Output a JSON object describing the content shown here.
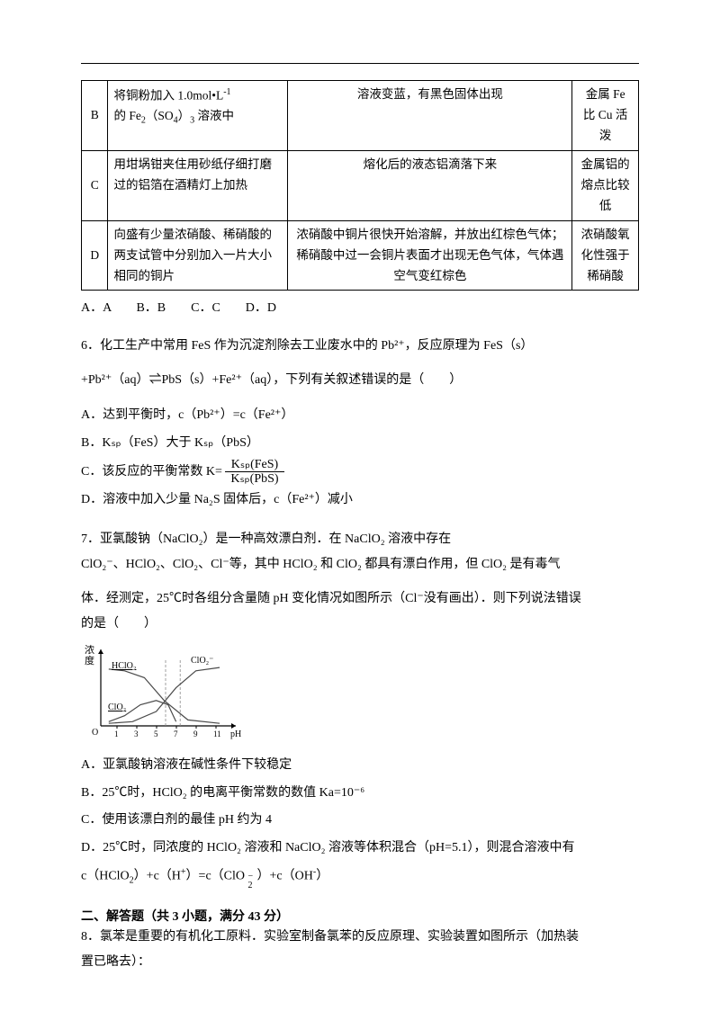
{
  "rule_present": true,
  "table": {
    "rows": [
      {
        "label": "B",
        "proc": "将铜粉加入 1.0mol•L⁻¹\n的 Fe₂（SO₄）₃ 溶液中",
        "obs": "溶液变蓝，有黑色固体出现",
        "concl": "金属 Fe 比 Cu 活泼"
      },
      {
        "label": "C",
        "proc": "用坩埚钳夹住用砂纸仔细打磨过的铝箔在酒精灯上加热",
        "obs": "熔化后的液态铝滴落下来",
        "concl": "金属铝的熔点比较低"
      },
      {
        "label": "D",
        "proc": "向盛有少量浓硝酸、稀硝酸的两支试管中分别加入一片大小相同的铜片",
        "obs": "浓硝酸中铜片很快开始溶解，并放出红棕色气体；稀硝酸中过一会铜片表面才出现无色气体，气体遇空气变红棕色",
        "concl": "浓硝酸氧化性强于稀硝酸"
      }
    ]
  },
  "q5_opts": "A．A　　B．B　　C．C　　D．D",
  "q6": {
    "stem1": "6．化工生产中常用 FeS 作为沉淀剂除去工业废水中的 Pb²⁺，反应原理为 FeS（s）",
    "stem2": "+Pb²⁺（aq）⇌PbS（s）+Fe²⁺（aq），下列有关叙述错误的是（　　）",
    "A": "A．达到平衡时，c（Pb²⁺）=c（Fe²⁺）",
    "B": "B．Kₛₚ（FeS）大于 Kₛₚ（PbS）",
    "C_prefix": "C．该反应的平衡常数 K=",
    "C_num": "Kₛₚ(FeS)",
    "C_den": "Kₛₚ(PbS)",
    "D": "D．溶液中加入少量 Na₂S 固体后，c（Fe²⁺）减小"
  },
  "q7": {
    "l1": "7．亚氯酸钠（NaClO₂）是一种高效漂白剂．在 NaClO₂ 溶液中存在",
    "l2": "ClO₂⁻、HClO₂、ClO₂、Cl⁻等，其中 HClO₂ 和 ClO₂ 都具有漂白作用，但 ClO₂ 是有毒气",
    "l3": "体．经测定，25℃时各组分含量随 pH 变化情况如图所示（Cl⁻没有画出）．则下列说法错误",
    "l4": "的是（　　）",
    "A": "A．亚氯酸钠溶液在碱性条件下较稳定",
    "B": "B．25℃时，HClO₂ 的电离平衡常数的数值 Ka=10⁻⁶",
    "C": "C．使用该漂白剂的最佳 pH 约为 4",
    "D1": "D．25℃时，同浓度的 HClO₂ 溶液和 NaClO₂ 溶液等体积混合（pH=5.1），则混合溶液中有",
    "D2": "c（HClO₂）+c（H⁺）=c（ClO₂⁻）+c（OH⁻）"
  },
  "chart": {
    "xlabel": "pH",
    "ylabel": "浓度",
    "xticks": [
      "1",
      "3",
      "5",
      "7",
      "9",
      "11"
    ],
    "labels": {
      "hclo2": "HClO₂",
      "clo2": "ClO₂",
      "clo2m": "ClO₂⁻"
    },
    "axis_color": "#000000",
    "curve_color": "#4a4a4a",
    "grid_color": "#888888",
    "bg": "#ffffff",
    "line_width": 1.2,
    "dash": "3,2",
    "series": {
      "hclo2": [
        [
          10,
          18
        ],
        [
          30,
          20
        ],
        [
          55,
          28
        ],
        [
          80,
          55
        ],
        [
          110,
          78
        ],
        [
          150,
          82
        ]
      ],
      "clo2m": [
        [
          10,
          82
        ],
        [
          40,
          80
        ],
        [
          70,
          68
        ],
        [
          95,
          40
        ],
        [
          120,
          20
        ],
        [
          150,
          16
        ]
      ],
      "clo2": [
        [
          10,
          80
        ],
        [
          30,
          73
        ],
        [
          50,
          60
        ],
        [
          70,
          55
        ],
        [
          85,
          60
        ],
        [
          95,
          80
        ]
      ]
    },
    "vlines": [
      80,
      98
    ]
  },
  "section2": {
    "heading": "二、解答题（共 3 小题，满分 43 分）",
    "q8a": "8．氯苯是重要的有机化工原料．实验室制备氯苯的反应原理、实验装置如图所示（加热装",
    "q8b": "置已略去）："
  }
}
